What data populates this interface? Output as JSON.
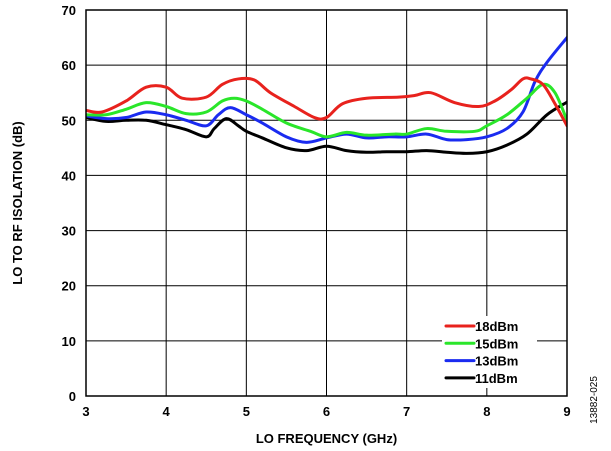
{
  "chart_data": {
    "type": "line",
    "title": "",
    "xlabel": "LO FREQUENCY (GHz)",
    "ylabel": "LO TO RF ISOLATION (dB)",
    "xlim": [
      3,
      9
    ],
    "ylim": [
      0,
      70
    ],
    "xticks": [
      3,
      4,
      5,
      6,
      7,
      8,
      9
    ],
    "yticks": [
      0,
      10,
      20,
      30,
      40,
      50,
      60,
      70
    ],
    "grid": true,
    "legend_position": "bottom-right",
    "figure_id": "13882-025",
    "series": [
      {
        "name": "18dBm",
        "color": "#e8221d",
        "x": [
          3.0,
          3.2,
          3.5,
          3.75,
          4.0,
          4.2,
          4.5,
          4.7,
          4.9,
          5.1,
          5.3,
          5.6,
          5.85,
          6.0,
          6.2,
          6.5,
          6.9,
          7.1,
          7.3,
          7.6,
          7.9,
          8.1,
          8.3,
          8.45,
          8.55,
          8.7,
          8.85,
          9.0
        ],
        "y": [
          51.8,
          51.5,
          53.5,
          56.0,
          56.0,
          54.0,
          54.2,
          56.5,
          57.5,
          57.3,
          55.0,
          52.5,
          50.5,
          50.5,
          53.0,
          54.0,
          54.2,
          54.5,
          55.0,
          53.2,
          52.5,
          53.5,
          55.5,
          57.5,
          57.5,
          56.5,
          53.0,
          49.0
        ]
      },
      {
        "name": "15dBm",
        "color": "#2ae62a",
        "x": [
          3.0,
          3.25,
          3.5,
          3.75,
          4.0,
          4.25,
          4.5,
          4.7,
          4.85,
          5.0,
          5.2,
          5.5,
          5.8,
          6.0,
          6.25,
          6.5,
          6.85,
          7.0,
          7.25,
          7.5,
          7.85,
          8.0,
          8.25,
          8.5,
          8.7,
          8.85,
          9.0
        ],
        "y": [
          51.0,
          51.0,
          52.0,
          53.2,
          52.5,
          51.2,
          51.5,
          53.5,
          54.0,
          53.5,
          52.0,
          49.5,
          48.0,
          47.0,
          47.8,
          47.3,
          47.5,
          47.5,
          48.5,
          48.0,
          48.0,
          49.0,
          51.0,
          54.0,
          56.5,
          55.0,
          50.0
        ]
      },
      {
        "name": "13dBm",
        "color": "#1a2bf0",
        "x": [
          3.0,
          3.25,
          3.5,
          3.75,
          4.0,
          4.25,
          4.5,
          4.65,
          4.8,
          5.0,
          5.2,
          5.5,
          5.75,
          6.0,
          6.25,
          6.5,
          6.75,
          7.0,
          7.25,
          7.5,
          7.75,
          8.0,
          8.25,
          8.45,
          8.6,
          8.75,
          9.0
        ],
        "y": [
          50.8,
          50.3,
          50.5,
          51.5,
          51.0,
          50.0,
          49.0,
          51.0,
          52.3,
          51.0,
          49.5,
          47.0,
          46.0,
          46.8,
          47.5,
          46.8,
          47.0,
          47.0,
          47.5,
          46.5,
          46.5,
          47.0,
          48.5,
          51.5,
          57.0,
          60.5,
          65.0
        ]
      },
      {
        "name": "11dBm",
        "color": "#000000",
        "x": [
          3.0,
          3.25,
          3.5,
          3.75,
          4.0,
          4.25,
          4.5,
          4.6,
          4.75,
          4.9,
          5.0,
          5.2,
          5.5,
          5.75,
          6.0,
          6.25,
          6.5,
          6.75,
          7.0,
          7.25,
          7.5,
          7.75,
          8.0,
          8.25,
          8.5,
          8.75,
          9.0
        ],
        "y": [
          50.5,
          49.8,
          50.0,
          50.0,
          49.2,
          48.3,
          47.0,
          48.5,
          50.3,
          49.0,
          48.0,
          46.8,
          45.0,
          44.5,
          45.3,
          44.5,
          44.2,
          44.3,
          44.3,
          44.5,
          44.2,
          44.0,
          44.3,
          45.5,
          47.5,
          51.0,
          53.3
        ]
      }
    ]
  }
}
